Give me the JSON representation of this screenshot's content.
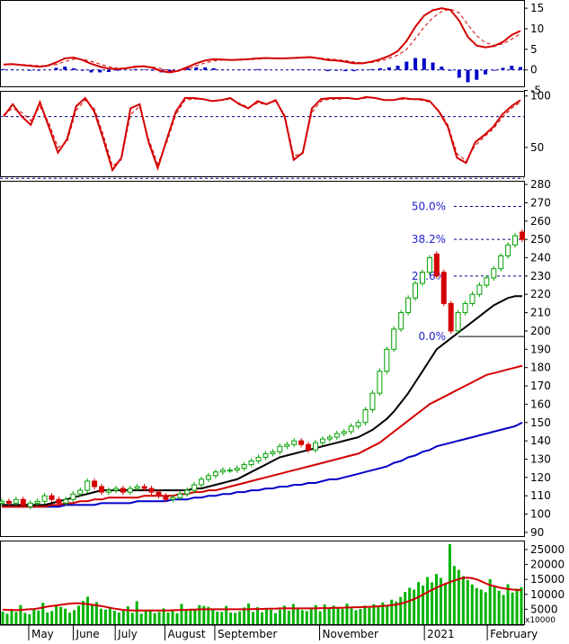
{
  "colors": {
    "up": "#00a000",
    "down": "#d40000",
    "ma_short": "#000000",
    "ma_mid": "#d40000",
    "ma_long": "#0000c8",
    "grid": "#00008b",
    "fib": "#00008b",
    "fib_text": "#1c1cc8",
    "volume": "#00b400",
    "panel_border": "#000000",
    "axis_text": "#000000"
  },
  "x_axis": {
    "months": [
      "May",
      "June",
      "July",
      "August",
      "September",
      "November",
      "2021",
      "February"
    ],
    "month_positions": [
      0.06,
      0.145,
      0.225,
      0.32,
      0.415,
      0.615,
      0.815,
      0.935
    ]
  },
  "chart_data": [
    {
      "type": "line",
      "panel": "macd",
      "ylim": [
        -4,
        17
      ],
      "y_ticks": [
        "15",
        "10",
        "5",
        "0",
        "-5"
      ],
      "y_tick_values": [
        15,
        10,
        5,
        0,
        -5
      ],
      "series": [
        {
          "role": "macd_line",
          "color": "#d40000",
          "values": [
            1.3,
            1.4,
            1.2,
            1.0,
            0.8,
            1.0,
            1.8,
            2.8,
            3.0,
            2.4,
            1.5,
            0.8,
            0.3,
            0.2,
            0.4,
            0.8,
            0.9,
            0.5,
            -0.3,
            -0.6,
            -0.2,
            0.7,
            1.6,
            2.3,
            2.6,
            2.5,
            2.4,
            2.5,
            2.6,
            2.8,
            2.9,
            2.8,
            2.8,
            2.9,
            3.0,
            3.1,
            2.8,
            2.4,
            2.3,
            2.0,
            1.6,
            1.6,
            2.0,
            2.6,
            3.4,
            4.6,
            7.0,
            10.5,
            13.2,
            14.5,
            15.0,
            14.6,
            12.0,
            8.0,
            5.9,
            5.5,
            5.8,
            6.8,
            8.5,
            9.5
          ]
        },
        {
          "role": "signal_line",
          "color": "#d40000",
          "dashed": true,
          "values": [
            1.2,
            1.3,
            1.3,
            1.2,
            1.0,
            1.0,
            1.3,
            2.0,
            2.6,
            2.6,
            2.1,
            1.4,
            0.8,
            0.4,
            0.4,
            0.6,
            0.8,
            0.7,
            0.3,
            -0.2,
            -0.2,
            0.2,
            1.0,
            1.7,
            2.2,
            2.4,
            2.4,
            2.4,
            2.5,
            2.6,
            2.8,
            2.8,
            2.8,
            2.8,
            2.9,
            3.0,
            2.9,
            2.7,
            2.5,
            2.3,
            1.9,
            1.7,
            1.8,
            2.2,
            2.8,
            3.6,
            5.0,
            7.6,
            10.4,
            12.7,
            14.2,
            14.8,
            13.9,
            11.0,
            8.3,
            6.6,
            6.0,
            6.3,
            7.5,
            8.8
          ]
        },
        {
          "role": "histogram",
          "color": "#0000c8",
          "values": [
            0.2,
            0.1,
            0,
            -0.2,
            -0.2,
            0,
            0.5,
            0.8,
            0.4,
            -0.2,
            -0.6,
            -0.6,
            -0.5,
            -0.2,
            0,
            0.2,
            0.1,
            -0.2,
            -0.6,
            -0.4,
            0,
            0.5,
            0.6,
            0.6,
            0.4,
            0.1,
            0,
            0.1,
            0.1,
            0.2,
            0.1,
            0,
            0,
            0.1,
            0.1,
            0.1,
            -0.1,
            -0.3,
            -0.2,
            -0.3,
            -0.3,
            -0.1,
            0.2,
            0.4,
            0.6,
            1.0,
            2.0,
            2.9,
            2.8,
            1.8,
            0.8,
            -0.2,
            -1.9,
            -3.0,
            -2.4,
            -1.1,
            -0.2,
            0.5,
            1.0,
            0.7
          ]
        }
      ]
    },
    {
      "type": "line",
      "panel": "stochastic",
      "ylim": [
        22,
        105
      ],
      "y_ticks": [
        "100",
        "50"
      ],
      "y_tick_values": [
        100,
        50
      ],
      "reference_lines": [
        80,
        20
      ],
      "series": [
        {
          "role": "k_line",
          "color": "#d40000",
          "values": [
            80,
            92,
            80,
            72,
            94,
            70,
            45,
            58,
            90,
            98,
            85,
            58,
            28,
            40,
            88,
            92,
            55,
            30,
            58,
            85,
            98,
            98,
            97,
            95,
            96,
            98,
            92,
            88,
            95,
            92,
            96,
            80,
            38,
            45,
            88,
            97,
            98,
            98,
            98,
            97,
            99,
            98,
            96,
            96,
            98,
            97,
            97,
            95,
            85,
            70,
            40,
            35,
            55,
            62,
            70,
            82,
            90,
            96
          ]
        },
        {
          "role": "d_line",
          "color": "#d40000",
          "dashed": true,
          "values": [
            82,
            88,
            84,
            76,
            90,
            74,
            50,
            55,
            86,
            96,
            88,
            62,
            32,
            38,
            82,
            90,
            58,
            34,
            55,
            82,
            96,
            97,
            97,
            95,
            96,
            97,
            93,
            89,
            93,
            92,
            95,
            82,
            42,
            44,
            84,
            95,
            97,
            97,
            98,
            97,
            98,
            98,
            96,
            96,
            97,
            97,
            96,
            94,
            86,
            72,
            44,
            37,
            52,
            60,
            68,
            79,
            88,
            94
          ]
        }
      ]
    },
    {
      "type": "candlestick",
      "panel": "price",
      "ylim": [
        88,
        282
      ],
      "y_ticks": [
        "280",
        "270",
        "260",
        "250",
        "240",
        "230",
        "220",
        "210",
        "200",
        "190",
        "180",
        "170",
        "160",
        "150",
        "140",
        "130",
        "120",
        "110",
        "100",
        "90"
      ],
      "y_tick_values": [
        280,
        270,
        260,
        250,
        240,
        230,
        220,
        210,
        200,
        190,
        180,
        170,
        160,
        150,
        140,
        130,
        120,
        110,
        100,
        90
      ],
      "close": [
        107,
        106,
        108,
        105,
        106,
        107,
        110,
        108,
        106,
        108,
        111,
        113,
        118,
        115,
        112,
        113,
        114,
        112,
        114,
        115,
        114,
        112,
        110,
        108,
        109,
        111,
        113,
        116,
        119,
        121,
        123,
        124,
        124,
        125,
        127,
        129,
        131,
        133,
        134,
        137,
        138,
        140,
        138,
        135,
        139,
        141,
        142,
        144,
        145,
        148,
        150,
        157,
        166,
        178,
        190,
        201,
        210,
        218,
        226,
        232,
        240,
        230,
        215,
        200,
        210,
        215,
        220,
        225,
        229,
        234,
        241,
        247,
        252,
        250
      ],
      "open": [
        106,
        107,
        106,
        108,
        104,
        106,
        107,
        110,
        108,
        106,
        108,
        111,
        113,
        118,
        115,
        112,
        113,
        114,
        112,
        114,
        115,
        114,
        112,
        110,
        108,
        109,
        111,
        113,
        116,
        119,
        121,
        123,
        124,
        124,
        125,
        127,
        129,
        131,
        133,
        134,
        137,
        138,
        140,
        138,
        135,
        139,
        141,
        142,
        144,
        145,
        148,
        150,
        157,
        166,
        178,
        190,
        201,
        210,
        218,
        226,
        232,
        242,
        232,
        215,
        200,
        210,
        215,
        220,
        225,
        229,
        234,
        241,
        247,
        254
      ],
      "ma_short": [
        105,
        105,
        105,
        105,
        105,
        105,
        105,
        106,
        107,
        108,
        109,
        110,
        111,
        112,
        113,
        113,
        113,
        113,
        113,
        113,
        113,
        113,
        113,
        113,
        113,
        113,
        113,
        114,
        114,
        115,
        116,
        117,
        118,
        119,
        121,
        123,
        125,
        127,
        129,
        131,
        132,
        133,
        134,
        135,
        136,
        137,
        138,
        139,
        140,
        141,
        142,
        144,
        146,
        149,
        152,
        156,
        161,
        166,
        172,
        178,
        184,
        190,
        193,
        196,
        199,
        202,
        205,
        208,
        211,
        214,
        216,
        218,
        219,
        219
      ],
      "ma_mid": [
        104,
        104,
        104,
        104,
        104,
        104,
        104,
        105,
        105,
        106,
        106,
        107,
        107,
        108,
        108,
        109,
        109,
        109,
        109,
        109,
        110,
        110,
        110,
        110,
        110,
        111,
        111,
        112,
        112,
        113,
        113,
        114,
        115,
        116,
        117,
        118,
        119,
        120,
        121,
        122,
        123,
        124,
        125,
        126,
        127,
        128,
        129,
        130,
        131,
        132,
        133,
        135,
        137,
        139,
        142,
        145,
        148,
        151,
        154,
        157,
        160,
        162,
        164,
        166,
        168,
        170,
        172,
        174,
        176,
        177,
        178,
        179,
        180,
        181
      ],
      "ma_long": [
        104,
        104,
        104,
        104,
        104,
        104,
        104,
        104,
        104,
        105,
        105,
        105,
        105,
        105,
        106,
        106,
        106,
        106,
        106,
        107,
        107,
        107,
        107,
        107,
        108,
        108,
        108,
        109,
        109,
        110,
        110,
        111,
        111,
        112,
        112,
        113,
        113,
        114,
        114,
        115,
        115,
        116,
        116,
        117,
        117,
        118,
        119,
        119,
        120,
        121,
        122,
        123,
        124,
        125,
        126,
        128,
        129,
        131,
        132,
        134,
        135,
        137,
        138,
        139,
        140,
        141,
        142,
        143,
        144,
        145,
        146,
        147,
        148,
        150
      ],
      "fibonacci": [
        {
          "label": "50.0%",
          "value": 268
        },
        {
          "label": "38.2%",
          "value": 250
        },
        {
          "label": "23.6%",
          "value": 230
        },
        {
          "label": "0.0%",
          "value": 197
        }
      ]
    },
    {
      "type": "bar",
      "panel": "volume",
      "ylim": [
        0,
        28000
      ],
      "y_ticks": [
        "25000",
        "20000",
        "15000",
        "10000",
        "5000"
      ],
      "y_tick_values": [
        25000,
        20000,
        15000,
        10000,
        5000
      ],
      "unit_label": "x10000",
      "values": [
        4200,
        3500,
        5000,
        4100,
        6400,
        3800,
        3300,
        5200,
        4600,
        7200,
        3900,
        4400,
        6100,
        5800,
        5200,
        3900,
        4700,
        6200,
        7800,
        9200,
        6500,
        7400,
        5200,
        4900,
        5600,
        4500,
        3900,
        4600,
        6000,
        3800,
        7700,
        3500,
        4400,
        4900,
        3700,
        4100,
        5300,
        3900,
        4600,
        3700,
        6800,
        4500,
        5100,
        4800,
        6400,
        6100,
        5800,
        5200,
        4200,
        4100,
        6100,
        3900,
        3800,
        4300,
        5600,
        6900,
        4100,
        5700,
        4000,
        5200,
        4800,
        3700,
        4900,
        6200,
        4500,
        6800,
        5100,
        4700,
        4400,
        5600,
        6400,
        4300,
        6600,
        5400,
        6200,
        5600,
        5100,
        6900,
        5300,
        4700,
        5100,
        6200,
        5500,
        6700,
        5900,
        7300,
        6500,
        8200,
        7600,
        9100,
        10800,
        12200,
        11600,
        14100,
        12900,
        15800,
        14000,
        16800,
        15500,
        13800,
        26800,
        19500,
        18200,
        16100,
        14800,
        13300,
        12100,
        11600,
        10700,
        15100,
        12800,
        11200,
        9800,
        13400,
        10600,
        11900,
        12400
      ],
      "ma_values": [
        4900,
        4800,
        4800,
        4700,
        4800,
        4900,
        5000,
        5100,
        5300,
        5600,
        5900,
        6100,
        6300,
        6500,
        6700,
        6900,
        7000,
        7000,
        6900,
        6700,
        6500,
        6300,
        6100,
        5800,
        5500,
        5200,
        5000,
        4800,
        4700,
        4600,
        4600,
        4600,
        4600,
        4600,
        4600,
        4600,
        4600,
        4600,
        4700,
        4700,
        4800,
        4800,
        4900,
        4900,
        5000,
        5000,
        5000,
        5000,
        5000,
        5000,
        5000,
        5000,
        5000,
        5000,
        5000,
        5000,
        5100,
        5100,
        5100,
        5200,
        5200,
        5200,
        5300,
        5300,
        5300,
        5300,
        5300,
        5300,
        5300,
        5300,
        5300,
        5400,
        5400,
        5400,
        5500,
        5500,
        5500,
        5600,
        5600,
        5700,
        5700,
        5800,
        5800,
        5900,
        6000,
        6100,
        6200,
        6400,
        6600,
        6900,
        7300,
        7800,
        8400,
        9100,
        9900,
        10700,
        11500,
        12200,
        12900,
        13500,
        14100,
        14600,
        15100,
        15500,
        15600,
        15400,
        15000,
        14400,
        13700,
        13100,
        12700,
        12300,
        12000,
        11800,
        11600,
        11500,
        11400
      ]
    }
  ]
}
